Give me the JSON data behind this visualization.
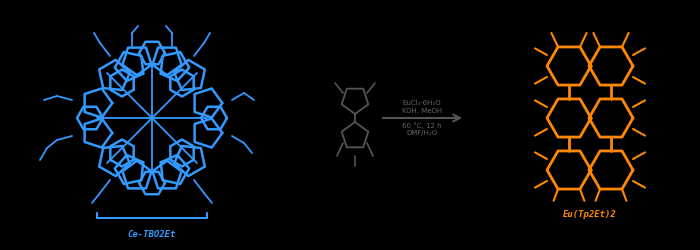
{
  "background_color": "#000000",
  "blue": "#3399ff",
  "orange": "#ff8800",
  "dark": "#555555",
  "fig_width": 7.0,
  "fig_height": 2.5,
  "dpi": 100,
  "label_left": "Ce-TBO2Et",
  "label_right": "Eu(Tp2Et)2",
  "arrow_text_above": [
    "EuCl₃·6H₂O",
    "KOH, MeOH"
  ],
  "arrow_text_below": [
    "60 °C, 12 h",
    "DMF/H₂O"
  ]
}
